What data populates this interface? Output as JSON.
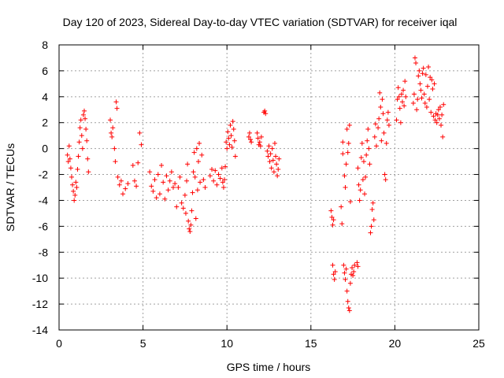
{
  "chart_data": {
    "type": "scatter",
    "title": "Day 120 of 2023, Sidereal Day-to-day VTEC variation (SDTVAR) for receiver iqal",
    "xlabel": "GPS time / hours",
    "ylabel": "SDTVAR / TECUs",
    "xlim": [
      0,
      25
    ],
    "ylim": [
      -14,
      8
    ],
    "xticks": [
      0,
      5,
      10,
      15,
      20,
      25
    ],
    "yticks": [
      -14,
      -12,
      -10,
      -8,
      -6,
      -4,
      -2,
      0,
      2,
      4,
      6,
      8
    ],
    "grid": true,
    "marker": "+",
    "color": "#ff0000",
    "series": [
      {
        "name": "SDTVAR",
        "points": [
          [
            0.5,
            -0.5
          ],
          [
            0.55,
            -1.0
          ],
          [
            0.6,
            0.2
          ],
          [
            0.65,
            -0.8
          ],
          [
            0.7,
            -1.5
          ],
          [
            0.75,
            -2.2
          ],
          [
            0.8,
            -2.8
          ],
          [
            0.85,
            -3.3
          ],
          [
            0.9,
            -4.0
          ],
          [
            0.95,
            -3.6
          ],
          [
            1.0,
            -2.6
          ],
          [
            1.05,
            -3.0
          ],
          [
            1.1,
            -1.6
          ],
          [
            1.15,
            -0.6
          ],
          [
            1.2,
            0.5
          ],
          [
            1.25,
            1.6
          ],
          [
            1.3,
            2.2
          ],
          [
            1.35,
            1.0
          ],
          [
            1.4,
            0.0
          ],
          [
            1.45,
            2.6
          ],
          [
            1.5,
            2.9
          ],
          [
            1.55,
            2.3
          ],
          [
            1.6,
            1.5
          ],
          [
            1.65,
            0.6
          ],
          [
            1.7,
            -0.8
          ],
          [
            1.75,
            -1.8
          ],
          [
            3.05,
            2.2
          ],
          [
            3.1,
            1.2
          ],
          [
            3.15,
            0.9
          ],
          [
            3.2,
            1.6
          ],
          [
            3.3,
            0.0
          ],
          [
            3.35,
            -1.0
          ],
          [
            3.4,
            3.6
          ],
          [
            3.45,
            3.1
          ],
          [
            3.5,
            -2.2
          ],
          [
            3.6,
            -2.8
          ],
          [
            3.7,
            -2.5
          ],
          [
            3.8,
            -3.5
          ],
          [
            3.95,
            -3.1
          ],
          [
            4.1,
            -2.7
          ],
          [
            4.4,
            -1.3
          ],
          [
            4.5,
            -2.5
          ],
          [
            4.6,
            -2.9
          ],
          [
            4.7,
            -1.1
          ],
          [
            4.8,
            1.2
          ],
          [
            4.9,
            0.3
          ],
          [
            5.4,
            -1.8
          ],
          [
            5.5,
            -2.9
          ],
          [
            5.6,
            -3.3
          ],
          [
            5.7,
            -2.4
          ],
          [
            5.8,
            -3.8
          ],
          [
            5.9,
            -2.0
          ],
          [
            6.0,
            -3.5
          ],
          [
            6.1,
            -1.3
          ],
          [
            6.2,
            -2.6
          ],
          [
            6.3,
            -3.9
          ],
          [
            6.4,
            -2.1
          ],
          [
            6.5,
            -3.2
          ],
          [
            6.6,
            -2.5
          ],
          [
            6.7,
            -1.8
          ],
          [
            6.8,
            -3.0
          ],
          [
            6.9,
            -2.7
          ],
          [
            7.0,
            -4.5
          ],
          [
            7.1,
            -3.0
          ],
          [
            7.2,
            -2.2
          ],
          [
            7.3,
            -4.2
          ],
          [
            7.4,
            -4.6
          ],
          [
            7.5,
            -3.6
          ],
          [
            7.55,
            -5.0
          ],
          [
            7.6,
            -2.5
          ],
          [
            7.65,
            -1.2
          ],
          [
            7.7,
            -5.6
          ],
          [
            7.75,
            -6.2
          ],
          [
            7.8,
            -6.4
          ],
          [
            7.85,
            -5.9
          ],
          [
            7.9,
            -4.8
          ],
          [
            7.95,
            -3.4
          ],
          [
            8.0,
            -1.8
          ],
          [
            8.05,
            -0.3
          ],
          [
            8.1,
            -2.2
          ],
          [
            8.15,
            -5.4
          ],
          [
            8.2,
            0.0
          ],
          [
            8.25,
            -3.2
          ],
          [
            8.3,
            -1.0
          ],
          [
            8.35,
            0.4
          ],
          [
            8.4,
            -2.6
          ],
          [
            8.5,
            -0.5
          ],
          [
            8.6,
            -2.4
          ],
          [
            8.7,
            -3.0
          ],
          [
            9.0,
            -2.1
          ],
          [
            9.1,
            -1.6
          ],
          [
            9.2,
            -2.5
          ],
          [
            9.3,
            -1.7
          ],
          [
            9.4,
            -2.8
          ],
          [
            9.5,
            -2.0
          ],
          [
            9.6,
            -2.3
          ],
          [
            9.7,
            -1.5
          ],
          [
            9.75,
            -2.6
          ],
          [
            9.8,
            -3.0
          ],
          [
            9.85,
            -2.4
          ],
          [
            9.9,
            -1.4
          ],
          [
            9.95,
            0.5
          ],
          [
            10.0,
            0.0
          ],
          [
            10.05,
            1.3
          ],
          [
            10.1,
            0.8
          ],
          [
            10.15,
            0.3
          ],
          [
            10.2,
            1.8
          ],
          [
            10.25,
            1.0
          ],
          [
            10.3,
            0.1
          ],
          [
            10.35,
            2.1
          ],
          [
            10.4,
            1.5
          ],
          [
            10.45,
            0.6
          ],
          [
            10.5,
            -0.6
          ],
          [
            11.3,
            0.9
          ],
          [
            11.35,
            1.2
          ],
          [
            11.4,
            0.7
          ],
          [
            11.45,
            0.5
          ],
          [
            11.8,
            1.2
          ],
          [
            11.85,
            0.8
          ],
          [
            11.9,
            0.3
          ],
          [
            11.95,
            0.5
          ],
          [
            12.0,
            0.2
          ],
          [
            12.05,
            0.9
          ],
          [
            12.2,
            2.8
          ],
          [
            12.25,
            2.9
          ],
          [
            12.3,
            2.7
          ],
          [
            12.4,
            -0.2
          ],
          [
            12.45,
            -0.6
          ],
          [
            12.5,
            0.2
          ],
          [
            12.55,
            -1.0
          ],
          [
            12.6,
            -0.4
          ],
          [
            12.65,
            -1.5
          ],
          [
            12.7,
            0.0
          ],
          [
            12.75,
            -0.9
          ],
          [
            12.8,
            -1.8
          ],
          [
            12.85,
            0.4
          ],
          [
            12.9,
            -0.6
          ],
          [
            12.95,
            -1.2
          ],
          [
            13.0,
            -2.1
          ],
          [
            13.05,
            -1.6
          ],
          [
            13.1,
            -0.8
          ],
          [
            16.2,
            -4.8
          ],
          [
            16.25,
            -5.3
          ],
          [
            16.3,
            -5.9
          ],
          [
            16.35,
            -5.5
          ],
          [
            16.3,
            -9.0
          ],
          [
            16.35,
            -9.7
          ],
          [
            16.4,
            -10.1
          ],
          [
            16.45,
            -9.5
          ],
          [
            16.8,
            -4.5
          ],
          [
            16.85,
            -5.8
          ],
          [
            16.9,
            -0.4
          ],
          [
            16.9,
            0.5
          ],
          [
            17.0,
            -2.1
          ],
          [
            17.05,
            -3.0
          ],
          [
            17.1,
            -1.2
          ],
          [
            17.15,
            1.5
          ],
          [
            17.2,
            -0.3
          ],
          [
            17.25,
            0.4
          ],
          [
            17.3,
            1.8
          ],
          [
            17.35,
            -4.1
          ],
          [
            16.95,
            -9.0
          ],
          [
            17.0,
            -9.6
          ],
          [
            17.05,
            -10.1
          ],
          [
            17.1,
            -9.3
          ],
          [
            17.15,
            -11.0
          ],
          [
            17.2,
            -11.8
          ],
          [
            17.25,
            -12.3
          ],
          [
            17.3,
            -12.5
          ],
          [
            17.35,
            -10.4
          ],
          [
            17.4,
            -9.7
          ],
          [
            17.45,
            -9.2
          ],
          [
            17.5,
            -9.8
          ],
          [
            17.55,
            -9.5
          ],
          [
            17.6,
            -9.0
          ],
          [
            17.75,
            -8.8
          ],
          [
            17.8,
            -9.1
          ],
          [
            17.8,
            -1.5
          ],
          [
            17.85,
            -2.8
          ],
          [
            17.9,
            -4.0
          ],
          [
            17.95,
            -3.2
          ],
          [
            18.0,
            -0.7
          ],
          [
            18.05,
            0.4
          ],
          [
            18.1,
            -2.4
          ],
          [
            18.15,
            -1.0
          ],
          [
            18.2,
            -3.5
          ],
          [
            18.25,
            -2.2
          ],
          [
            18.3,
            -0.5
          ],
          [
            18.35,
            0.6
          ],
          [
            18.4,
            1.5
          ],
          [
            18.45,
            0.0
          ],
          [
            18.5,
            -1.2
          ],
          [
            18.55,
            -6.5
          ],
          [
            18.6,
            -6.0
          ],
          [
            18.65,
            -4.7
          ],
          [
            18.7,
            -4.2
          ],
          [
            18.75,
            -5.5
          ],
          [
            18.8,
            0.9
          ],
          [
            18.85,
            1.9
          ],
          [
            18.9,
            0.2
          ],
          [
            19.0,
            1.6
          ],
          [
            19.05,
            2.3
          ],
          [
            19.1,
            4.3
          ],
          [
            19.15,
            3.2
          ],
          [
            19.2,
            0.6
          ],
          [
            19.25,
            3.8
          ],
          [
            19.3,
            2.7
          ],
          [
            19.35,
            1.2
          ],
          [
            19.4,
            -2.0
          ],
          [
            19.45,
            -2.4
          ],
          [
            19.5,
            0.4
          ],
          [
            19.55,
            2.2
          ],
          [
            19.6,
            2.8
          ],
          [
            19.65,
            1.8
          ],
          [
            20.1,
            2.2
          ],
          [
            20.15,
            3.8
          ],
          [
            20.2,
            4.7
          ],
          [
            20.25,
            4.0
          ],
          [
            20.3,
            3.1
          ],
          [
            20.35,
            2.0
          ],
          [
            20.4,
            4.2
          ],
          [
            20.45,
            3.6
          ],
          [
            20.5,
            4.5
          ],
          [
            20.55,
            3.3
          ],
          [
            20.6,
            5.2
          ],
          [
            20.65,
            4.0
          ],
          [
            21.1,
            3.5
          ],
          [
            21.15,
            4.2
          ],
          [
            21.2,
            7.0
          ],
          [
            21.25,
            6.6
          ],
          [
            21.3,
            3.0
          ],
          [
            21.35,
            3.8
          ],
          [
            21.4,
            5.6
          ],
          [
            21.45,
            6.0
          ],
          [
            21.5,
            5.0
          ],
          [
            21.55,
            4.5
          ],
          [
            21.6,
            3.9
          ],
          [
            21.65,
            5.8
          ],
          [
            21.7,
            6.2
          ],
          [
            21.75,
            4.2
          ],
          [
            21.8,
            3.5
          ],
          [
            21.85,
            5.7
          ],
          [
            21.9,
            3.2
          ],
          [
            21.95,
            4.8
          ],
          [
            22.0,
            6.3
          ],
          [
            22.05,
            3.8
          ],
          [
            22.1,
            5.5
          ],
          [
            22.15,
            2.8
          ],
          [
            22.2,
            5.3
          ],
          [
            22.25,
            4.6
          ],
          [
            22.3,
            2.5
          ],
          [
            22.35,
            5.0
          ],
          [
            22.4,
            2.2
          ],
          [
            22.45,
            2.7
          ],
          [
            22.5,
            2.0
          ],
          [
            22.55,
            2.6
          ],
          [
            22.6,
            3.0
          ],
          [
            22.65,
            2.3
          ],
          [
            22.7,
            3.2
          ],
          [
            22.75,
            1.8
          ],
          [
            22.8,
            2.6
          ],
          [
            22.85,
            0.9
          ],
          [
            22.9,
            3.4
          ]
        ]
      }
    ]
  }
}
